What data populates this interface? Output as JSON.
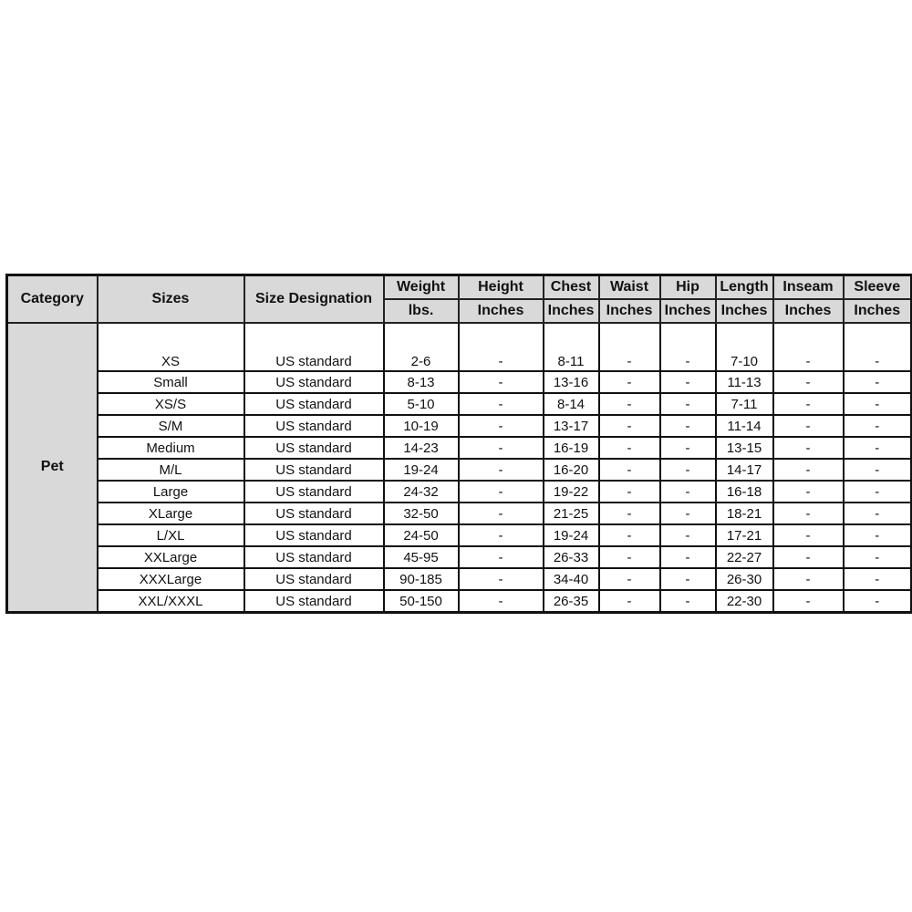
{
  "table": {
    "headers": {
      "category": "Category",
      "sizes": "Sizes",
      "size_designation": "Size Designation",
      "measures": [
        {
          "label": "Weight",
          "unit": "lbs."
        },
        {
          "label": "Height",
          "unit": "Inches"
        },
        {
          "label": "Chest",
          "unit": "Inches"
        },
        {
          "label": "Waist",
          "unit": "Inches"
        },
        {
          "label": "Hip",
          "unit": "Inches"
        },
        {
          "label": "Length",
          "unit": "Inches"
        },
        {
          "label": "Inseam",
          "unit": "Inches"
        },
        {
          "label": "Sleeve",
          "unit": "Inches"
        }
      ]
    },
    "category": "Pet",
    "rows": [
      [
        "XS",
        "US standard",
        "2-6",
        "-",
        "8-11",
        "-",
        "-",
        "7-10",
        "-",
        "-"
      ],
      [
        "Small",
        "US standard",
        "8-13",
        "-",
        "13-16",
        "-",
        "-",
        "11-13",
        "-",
        "-"
      ],
      [
        "XS/S",
        "US standard",
        "5-10",
        "-",
        "8-14",
        "-",
        "-",
        "7-11",
        "-",
        "-"
      ],
      [
        "S/M",
        "US standard",
        "10-19",
        "-",
        "13-17",
        "-",
        "-",
        "11-14",
        "-",
        "-"
      ],
      [
        "Medium",
        "US standard",
        "14-23",
        "-",
        "16-19",
        "-",
        "-",
        "13-15",
        "-",
        "-"
      ],
      [
        "M/L",
        "US standard",
        "19-24",
        "-",
        "16-20",
        "-",
        "-",
        "14-17",
        "-",
        "-"
      ],
      [
        "Large",
        "US standard",
        "24-32",
        "-",
        "19-22",
        "-",
        "-",
        "16-18",
        "-",
        "-"
      ],
      [
        "XLarge",
        "US standard",
        "32-50",
        "-",
        "21-25",
        "-",
        "-",
        "18-21",
        "-",
        "-"
      ],
      [
        "L/XL",
        "US standard",
        "24-50",
        "-",
        "19-24",
        "-",
        "-",
        "17-21",
        "-",
        "-"
      ],
      [
        "XXLarge",
        "US standard",
        "45-95",
        "-",
        "26-33",
        "-",
        "-",
        "22-27",
        "-",
        "-"
      ],
      [
        "XXXLarge",
        "US standard",
        "90-185",
        "-",
        "34-40",
        "-",
        "-",
        "26-30",
        "-",
        "-"
      ],
      [
        "XXL/XXXL",
        "US standard",
        "50-150",
        "-",
        "26-35",
        "-",
        "-",
        "22-30",
        "-",
        "-"
      ]
    ]
  }
}
